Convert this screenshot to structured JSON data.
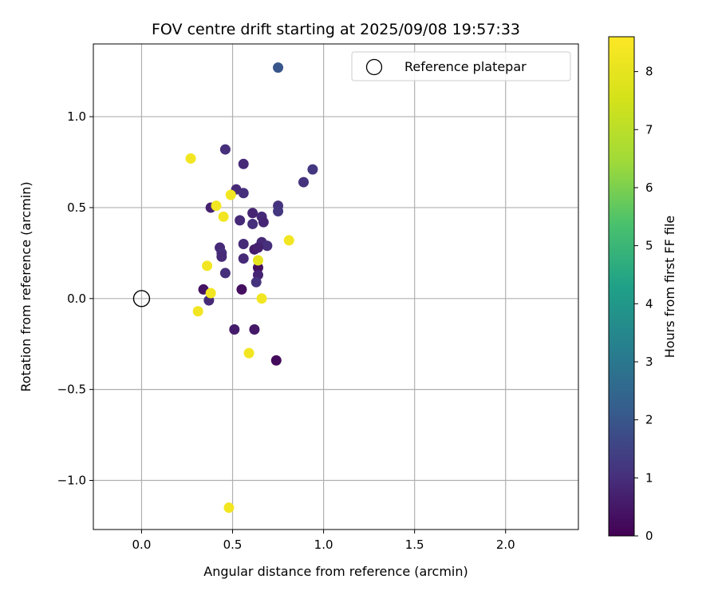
{
  "chart_data": {
    "type": "scatter",
    "title": "FOV centre drift starting at 2025/09/08 19:57:33",
    "xlabel": "Angular distance from reference (arcmin)",
    "ylabel": "Rotation from reference (arcmin)",
    "xlim": [
      -0.265,
      2.4
    ],
    "ylim": [
      -1.27,
      1.4
    ],
    "xticks": [
      {
        "value": 0.0,
        "label": "0.0"
      },
      {
        "value": 0.5,
        "label": "0.5"
      },
      {
        "value": 1.0,
        "label": "1.0"
      },
      {
        "value": 1.5,
        "label": "1.5"
      },
      {
        "value": 2.0,
        "label": "2.0"
      }
    ],
    "yticks": [
      {
        "value": -1.0,
        "label": "−1.0"
      },
      {
        "value": -0.5,
        "label": "−0.5"
      },
      {
        "value": 0.0,
        "label": "0.0"
      },
      {
        "value": 0.5,
        "label": "0.5"
      },
      {
        "value": 1.0,
        "label": "1.0"
      }
    ],
    "grid": true,
    "colormap": "viridis",
    "colorbar": {
      "label": "Hours from first FF file",
      "min": 0,
      "max": 8.6,
      "ticks": [
        {
          "value": 0,
          "label": "0"
        },
        {
          "value": 1,
          "label": "1"
        },
        {
          "value": 2,
          "label": "2"
        },
        {
          "value": 3,
          "label": "3"
        },
        {
          "value": 4,
          "label": "4"
        },
        {
          "value": 5,
          "label": "5"
        },
        {
          "value": 6,
          "label": "6"
        },
        {
          "value": 7,
          "label": "7"
        },
        {
          "value": 8,
          "label": "8"
        }
      ]
    },
    "legend": {
      "location": "top-right",
      "entries": [
        {
          "label": "Reference platepar",
          "marker": "open-circle"
        }
      ]
    },
    "reference": {
      "x": 0.0,
      "y": 0.0
    },
    "points": [
      {
        "x": 0.75,
        "y": 1.27,
        "c": 2.0
      },
      {
        "x": 0.46,
        "y": 0.82,
        "c": 1.0
      },
      {
        "x": 0.56,
        "y": 0.74,
        "c": 0.9
      },
      {
        "x": 0.94,
        "y": 0.71,
        "c": 1.2
      },
      {
        "x": 0.89,
        "y": 0.64,
        "c": 1.1
      },
      {
        "x": 0.52,
        "y": 0.6,
        "c": 0.9
      },
      {
        "x": 0.56,
        "y": 0.58,
        "c": 1.0
      },
      {
        "x": 0.75,
        "y": 0.51,
        "c": 1.1
      },
      {
        "x": 0.75,
        "y": 0.48,
        "c": 1.2
      },
      {
        "x": 0.38,
        "y": 0.5,
        "c": 0.7
      },
      {
        "x": 0.61,
        "y": 0.47,
        "c": 0.8
      },
      {
        "x": 0.66,
        "y": 0.45,
        "c": 0.9
      },
      {
        "x": 0.54,
        "y": 0.43,
        "c": 0.9
      },
      {
        "x": 0.61,
        "y": 0.41,
        "c": 1.0
      },
      {
        "x": 0.67,
        "y": 0.42,
        "c": 0.8
      },
      {
        "x": 0.56,
        "y": 0.3,
        "c": 0.9
      },
      {
        "x": 0.66,
        "y": 0.31,
        "c": 0.9
      },
      {
        "x": 0.69,
        "y": 0.29,
        "c": 1.0
      },
      {
        "x": 0.43,
        "y": 0.28,
        "c": 0.9
      },
      {
        "x": 0.62,
        "y": 0.27,
        "c": 0.6
      },
      {
        "x": 0.64,
        "y": 0.28,
        "c": 0.7
      },
      {
        "x": 0.44,
        "y": 0.25,
        "c": 1.0
      },
      {
        "x": 0.44,
        "y": 0.23,
        "c": 0.9
      },
      {
        "x": 0.56,
        "y": 0.22,
        "c": 0.9
      },
      {
        "x": 0.64,
        "y": 0.17,
        "c": 0.3
      },
      {
        "x": 0.64,
        "y": 0.13,
        "c": 0.8
      },
      {
        "x": 0.46,
        "y": 0.14,
        "c": 1.0
      },
      {
        "x": 0.63,
        "y": 0.09,
        "c": 1.1
      },
      {
        "x": 0.34,
        "y": 0.05,
        "c": 0.4
      },
      {
        "x": 0.55,
        "y": 0.05,
        "c": 0.3
      },
      {
        "x": 0.37,
        "y": -0.01,
        "c": 0.9
      },
      {
        "x": 0.51,
        "y": -0.17,
        "c": 0.6
      },
      {
        "x": 0.62,
        "y": -0.17,
        "c": 0.5
      },
      {
        "x": 0.74,
        "y": -0.34,
        "c": 0.2
      },
      {
        "x": 0.27,
        "y": 0.77,
        "c": 8.3
      },
      {
        "x": 0.49,
        "y": 0.57,
        "c": 8.3
      },
      {
        "x": 0.41,
        "y": 0.51,
        "c": 8.3
      },
      {
        "x": 0.45,
        "y": 0.45,
        "c": 8.3
      },
      {
        "x": 0.81,
        "y": 0.32,
        "c": 8.3
      },
      {
        "x": 0.64,
        "y": 0.21,
        "c": 8.0
      },
      {
        "x": 0.36,
        "y": 0.18,
        "c": 8.3
      },
      {
        "x": 0.38,
        "y": 0.03,
        "c": 8.3
      },
      {
        "x": 0.66,
        "y": 0.0,
        "c": 8.3
      },
      {
        "x": 0.31,
        "y": -0.07,
        "c": 8.3
      },
      {
        "x": 0.59,
        "y": -0.3,
        "c": 8.3
      },
      {
        "x": 0.48,
        "y": -1.15,
        "c": 8.3
      }
    ]
  }
}
